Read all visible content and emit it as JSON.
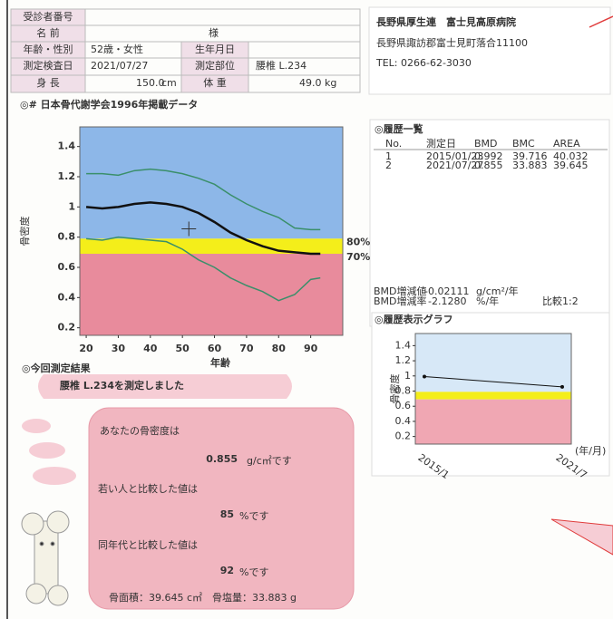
{
  "patient": {
    "id_label": "受診者番号",
    "name_label": "名 前",
    "name_suffix": "様",
    "age_sex_label": "年齢・性別",
    "age_sex": "52歳・女性",
    "birth_label": "生年月日",
    "exam_date_label": "測定検査日",
    "exam_date": "2021/07/27",
    "site_label": "測定部位",
    "site": "腰椎 L.234",
    "height_label": "身 長",
    "height": "150.0",
    "height_unit": "cm",
    "weight_label": "体 重",
    "weight": "49.0",
    "weight_unit": "kg"
  },
  "hospital": {
    "name": "長野県厚生連　富士見高原病院",
    "address": "長野県諏訪郡富士見町落合11100",
    "tel": "TEL: 0266-62-3030"
  },
  "history": {
    "title": "◎履歴一覧",
    "columns": [
      "No.",
      "測定日",
      "BMD",
      "BMC",
      "AREA"
    ],
    "rows": [
      [
        "1",
        "2015/01/23",
        "0.992",
        "39.716",
        "40.032"
      ],
      [
        "2",
        "2021/07/27",
        "0.855",
        "33.883",
        "39.645"
      ]
    ],
    "bmd_change_label": "BMD増減値",
    "bmd_change": "-0.02111",
    "bmd_change_unit": "g/cm²/年",
    "bmd_rate_label": "BMD増減率",
    "bmd_rate": "-2.1280",
    "bmd_rate_unit": "%/年",
    "compare": "比較1:2"
  },
  "result": {
    "title": "◎今回測定結果",
    "banner": "腰椎 L.234を測定しました",
    "bmd_label": "あなたの骨密度は",
    "bmd": "0.855",
    "bmd_unit": "g/c㎡です",
    "young_label": "若い人と比較した値は",
    "young": "85",
    "young_unit": "%です",
    "same_age_label": "同年代と比較した値は",
    "same_age": "92",
    "same_age_unit": "%です",
    "footer": "骨面積：39.645 c㎡　骨塩量：33.883 g"
  },
  "chart_data": [
    {
      "type": "line",
      "title": "◎# 日本骨代謝学会1996年掲載データ",
      "x_label": "年齢",
      "y_label": "骨密度",
      "x": [
        20,
        25,
        30,
        35,
        40,
        45,
        50,
        55,
        60,
        65,
        70,
        75,
        80,
        85,
        90,
        93
      ],
      "series": [
        {
          "color": "#3a8f6a",
          "values": [
            1.22,
            1.22,
            1.21,
            1.24,
            1.25,
            1.24,
            1.22,
            1.19,
            1.15,
            1.08,
            1.02,
            0.97,
            0.93,
            0.86,
            0.85,
            0.85
          ]
        },
        {
          "color": "#111111",
          "values": [
            1.0,
            0.99,
            1.0,
            1.02,
            1.03,
            1.02,
            1.0,
            0.96,
            0.9,
            0.83,
            0.78,
            0.74,
            0.71,
            0.7,
            0.69,
            0.69
          ]
        },
        {
          "color": "#3a8f6a",
          "values": [
            0.79,
            0.78,
            0.8,
            0.79,
            0.78,
            0.77,
            0.72,
            0.65,
            0.6,
            0.53,
            0.48,
            0.44,
            0.38,
            0.42,
            0.52,
            0.53
          ]
        }
      ],
      "xlim": [
        18,
        100
      ],
      "ylim": [
        0.15,
        1.53
      ],
      "xticks": [
        20,
        30,
        40,
        50,
        60,
        70,
        80,
        90
      ],
      "yticks": [
        1.4,
        1.2,
        1,
        0.8,
        0.6,
        0.4,
        0.2
      ],
      "bands": [
        {
          "from": 0.79,
          "to": 1.53,
          "color": "#8db7e8"
        },
        {
          "from": 0.69,
          "to": 0.79,
          "color": "#f4ee1a"
        },
        {
          "from": 0.15,
          "to": 0.69,
          "color": "#e88b9c"
        }
      ],
      "band_labels": [
        {
          "text": "80%",
          "y": 0.79
        },
        {
          "text": "70%",
          "y": 0.69
        }
      ],
      "marker": {
        "x": 52,
        "y": 0.855
      }
    },
    {
      "type": "line",
      "title": "◎履歴表示グラフ",
      "x_label": "(年/月)",
      "y_label": "骨密度",
      "categories": [
        "2015/1",
        "2021/7"
      ],
      "series": [
        {
          "color": "#111111",
          "values": [
            0.992,
            0.855
          ]
        }
      ],
      "ylim": [
        0.1,
        1.56
      ],
      "yticks": [
        1.4,
        1.2,
        1,
        0.8,
        0.6,
        0.4,
        0.2
      ],
      "bands": [
        {
          "from": 0.79,
          "to": 1.56,
          "color": "#d7e8f7"
        },
        {
          "from": 0.69,
          "to": 0.79,
          "color": "#f4ee1a"
        },
        {
          "from": 0.1,
          "to": 0.69,
          "color": "#f0a7b3"
        }
      ]
    }
  ]
}
